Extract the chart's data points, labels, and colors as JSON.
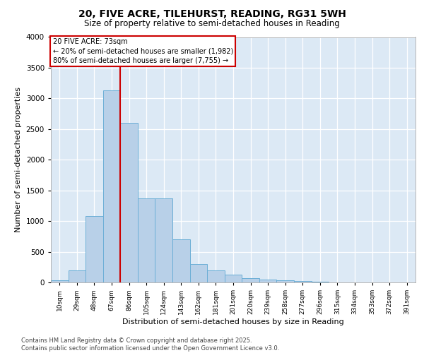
{
  "title_line1": "20, FIVE ACRE, TILEHURST, READING, RG31 5WH",
  "title_line2": "Size of property relative to semi-detached houses in Reading",
  "xlabel": "Distribution of semi-detached houses by size in Reading",
  "ylabel": "Number of semi-detached properties",
  "footer_line1": "Contains HM Land Registry data © Crown copyright and database right 2025.",
  "footer_line2": "Contains public sector information licensed under the Open Government Licence v3.0.",
  "categories": [
    "10sqm",
    "29sqm",
    "48sqm",
    "67sqm",
    "86sqm",
    "105sqm",
    "124sqm",
    "143sqm",
    "162sqm",
    "181sqm",
    "201sqm",
    "220sqm",
    "239sqm",
    "258sqm",
    "277sqm",
    "296sqm",
    "315sqm",
    "334sqm",
    "353sqm",
    "372sqm",
    "391sqm"
  ],
  "values": [
    30,
    200,
    1080,
    3130,
    2600,
    1370,
    1370,
    700,
    300,
    200,
    130,
    70,
    50,
    30,
    20,
    10,
    5,
    3,
    2,
    1,
    0
  ],
  "bar_color": "#b8d0e8",
  "bar_edge_color": "#6baed6",
  "ylim": [
    0,
    4000
  ],
  "yticks": [
    0,
    500,
    1000,
    1500,
    2000,
    2500,
    3000,
    3500,
    4000
  ],
  "property_label": "20 FIVE ACRE: 73sqm",
  "pct_smaller": 20,
  "pct_larger": 80,
  "count_smaller": 1982,
  "count_larger": 7755,
  "vline_x_pos": 3.5,
  "vline_color": "#cc0000",
  "annot_box_color": "#cc0000",
  "bg_color": "#dce9f5",
  "footer_color": "#444444"
}
